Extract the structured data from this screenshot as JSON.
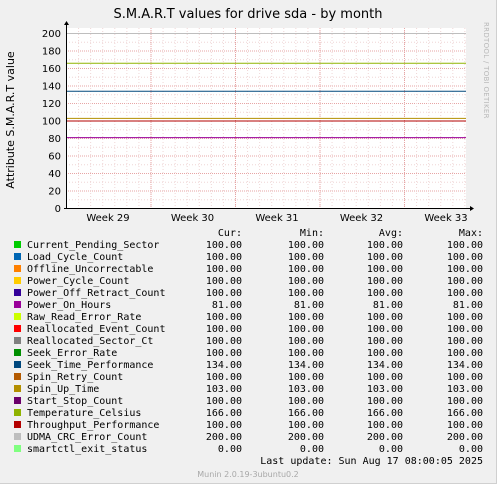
{
  "chart_data": {
    "type": "line",
    "title": "S.M.A.R.T values for drive sda - by month",
    "ylabel": "Attribute S.M.A.R.T value",
    "side_label": "RRDTOOL / TOBI OETIKER",
    "ylim": [
      0,
      200
    ],
    "yticks": [
      "0",
      "20",
      "40",
      "60",
      "80",
      "100",
      "120",
      "140",
      "160",
      "180",
      "200"
    ],
    "xticks": [
      "Week 29",
      "Week 30",
      "Week 31",
      "Week 32",
      "Week 33"
    ],
    "grid": true,
    "columns": [
      "Cur:",
      "Min:",
      "Avg:",
      "Max:"
    ],
    "series": [
      {
        "name": "Current_Pending_Sector",
        "color": "#00cc00",
        "value": 100,
        "cur": "100.00",
        "min": "100.00",
        "avg": "100.00",
        "max": "100.00"
      },
      {
        "name": "Load_Cycle_Count",
        "color": "#0066b3",
        "value": 100,
        "cur": "100.00",
        "min": "100.00",
        "avg": "100.00",
        "max": "100.00"
      },
      {
        "name": "Offline_Uncorrectable",
        "color": "#ff8000",
        "value": 100,
        "cur": "100.00",
        "min": "100.00",
        "avg": "100.00",
        "max": "100.00"
      },
      {
        "name": "Power_Cycle_Count",
        "color": "#ffcc00",
        "value": 100,
        "cur": "100.00",
        "min": "100.00",
        "avg": "100.00",
        "max": "100.00"
      },
      {
        "name": "Power_Off_Retract_Count",
        "color": "#330099",
        "value": 100,
        "cur": "100.00",
        "min": "100.00",
        "avg": "100.00",
        "max": "100.00"
      },
      {
        "name": "Power_On_Hours",
        "color": "#990099",
        "value": 81,
        "cur": "81.00",
        "min": "81.00",
        "avg": "81.00",
        "max": "81.00"
      },
      {
        "name": "Raw_Read_Error_Rate",
        "color": "#ccff00",
        "value": 100,
        "cur": "100.00",
        "min": "100.00",
        "avg": "100.00",
        "max": "100.00"
      },
      {
        "name": "Reallocated_Event_Count",
        "color": "#ff0000",
        "value": 100,
        "cur": "100.00",
        "min": "100.00",
        "avg": "100.00",
        "max": "100.00"
      },
      {
        "name": "Reallocated_Sector_Ct",
        "color": "#808080",
        "value": 100,
        "cur": "100.00",
        "min": "100.00",
        "avg": "100.00",
        "max": "100.00"
      },
      {
        "name": "Seek_Error_Rate",
        "color": "#008f00",
        "value": 100,
        "cur": "100.00",
        "min": "100.00",
        "avg": "100.00",
        "max": "100.00"
      },
      {
        "name": "Seek_Time_Performance",
        "color": "#00487d",
        "value": 134,
        "cur": "134.00",
        "min": "134.00",
        "avg": "134.00",
        "max": "134.00"
      },
      {
        "name": "Spin_Retry_Count",
        "color": "#b35a00",
        "value": 100,
        "cur": "100.00",
        "min": "100.00",
        "avg": "100.00",
        "max": "100.00"
      },
      {
        "name": "Spin_Up_Time",
        "color": "#b38f00",
        "value": 103,
        "cur": "103.00",
        "min": "103.00",
        "avg": "103.00",
        "max": "103.00"
      },
      {
        "name": "Start_Stop_Count",
        "color": "#6b006b",
        "value": 100,
        "cur": "100.00",
        "min": "100.00",
        "avg": "100.00",
        "max": "100.00"
      },
      {
        "name": "Temperature_Celsius",
        "color": "#8fb300",
        "value": 166,
        "cur": "166.00",
        "min": "166.00",
        "avg": "166.00",
        "max": "166.00"
      },
      {
        "name": "Throughput_Performance",
        "color": "#b30000",
        "value": 100,
        "cur": "100.00",
        "min": "100.00",
        "avg": "100.00",
        "max": "100.00"
      },
      {
        "name": "UDMA_CRC_Error_Count",
        "color": "#bebebe",
        "value": 200,
        "cur": "200.00",
        "min": "200.00",
        "avg": "200.00",
        "max": "200.00"
      },
      {
        "name": "smartctl_exit_status",
        "color": "#80ff80",
        "value": 0,
        "cur": "0.00",
        "min": "0.00",
        "avg": "0.00",
        "max": "0.00"
      }
    ],
    "last_update": "Last update:  Sun Aug 17 08:00:05 2025",
    "footer": "Munin 2.0.19-3ubuntu0.2"
  }
}
